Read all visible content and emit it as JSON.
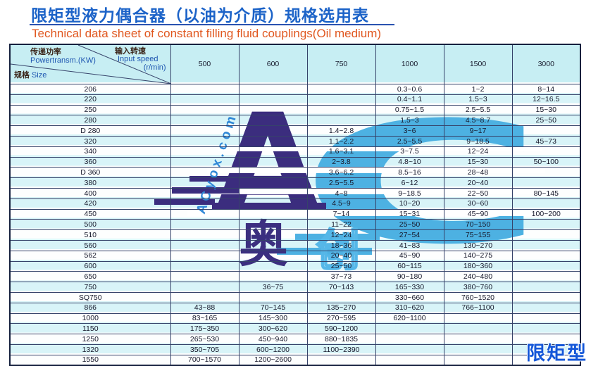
{
  "page": {
    "title_cn": "限矩型液力偶合器（以油为介质）规格选用表",
    "title_en": "Technical data sheet of constant filling fluid couplings(Oil medium)",
    "corner_label": "限矩型"
  },
  "watermark": {
    "logo_letters": "AC",
    "site_text": "ACyox.com",
    "char_left": "奥",
    "char_right": "创",
    "color_dark": "#3b2d7e",
    "color_light": "#4db1e2"
  },
  "table": {
    "header": {
      "power_cn": "传递功率",
      "power_en": "Powertransm.(KW)",
      "speed_cn": "输入转速",
      "speed_en": "Input speed",
      "speed_unit": "(r/min)",
      "size_cn": "规格",
      "size_en": "Size",
      "speed_columns": [
        "500",
        "600",
        "750",
        "1000",
        "1500",
        "3000"
      ]
    },
    "rows": [
      {
        "size": "206",
        "v": [
          "",
          "",
          "",
          "0.3~0.6",
          "1~2",
          "8~14"
        ]
      },
      {
        "size": "220",
        "v": [
          "",
          "",
          "",
          "0.4~1.1",
          "1.5~3",
          "12~16.5"
        ]
      },
      {
        "size": "250",
        "v": [
          "",
          "",
          "",
          "0.75~1.5",
          "2.5~5.5",
          "15~30"
        ]
      },
      {
        "size": "280",
        "v": [
          "",
          "",
          "",
          "1.5~3",
          "4.5~8.7",
          "25~50"
        ]
      },
      {
        "size": "D 280",
        "v": [
          "",
          "",
          "1.4~2.8",
          "3~6",
          "9~17",
          ""
        ]
      },
      {
        "size": "320",
        "v": [
          "",
          "",
          "1.1~2.2",
          "2.5~5.5",
          "9~18.5",
          "45~73"
        ]
      },
      {
        "size": "340",
        "v": [
          "",
          "",
          "1.6~3.1",
          "3~7.5",
          "12~24",
          ""
        ]
      },
      {
        "size": "360",
        "v": [
          "",
          "",
          "2~3.8",
          "4.8~10",
          "15~30",
          "50~100"
        ]
      },
      {
        "size": "D 360",
        "v": [
          "",
          "",
          "3.6~6.2",
          "8.5~16",
          "28~48",
          ""
        ]
      },
      {
        "size": "380",
        "v": [
          "",
          "",
          "2.5~5.5",
          "6~12",
          "20~40",
          ""
        ]
      },
      {
        "size": "400",
        "v": [
          "",
          "",
          "4~8",
          "9~18.5",
          "22~50",
          "80~145"
        ]
      },
      {
        "size": "420",
        "v": [
          "",
          "",
          "4.5~9",
          "10~20",
          "30~60",
          ""
        ]
      },
      {
        "size": "450",
        "v": [
          "",
          "",
          "7~14",
          "15~31",
          "45~90",
          "100~200"
        ]
      },
      {
        "size": "500",
        "v": [
          "",
          "",
          "11~22",
          "25~50",
          "70~150",
          ""
        ]
      },
      {
        "size": "510",
        "v": [
          "",
          "",
          "12~24",
          "27~54",
          "75~155",
          ""
        ]
      },
      {
        "size": "560",
        "v": [
          "",
          "",
          "18~36",
          "41~83",
          "130~270",
          ""
        ]
      },
      {
        "size": "562",
        "v": [
          "",
          "",
          "20~40",
          "45~90",
          "140~275",
          ""
        ]
      },
      {
        "size": "600",
        "v": [
          "",
          "",
          "25~50",
          "60~115",
          "180~360",
          ""
        ]
      },
      {
        "size": "650",
        "v": [
          "",
          "",
          "37~73",
          "90~180",
          "240~480",
          ""
        ]
      },
      {
        "size": "750",
        "v": [
          "",
          "36~75",
          "70~143",
          "165~330",
          "380~760",
          ""
        ]
      },
      {
        "size": "SQ750",
        "v": [
          "",
          "",
          "",
          "330~660",
          "760~1520",
          ""
        ]
      },
      {
        "size": "866",
        "v": [
          "43~88",
          "70~145",
          "135~270",
          "310~620",
          "766~1100",
          ""
        ]
      },
      {
        "size": "1000",
        "v": [
          "83~165",
          "145~300",
          "270~595",
          "620~1100",
          "",
          ""
        ]
      },
      {
        "size": "1150",
        "v": [
          "175~350",
          "300~620",
          "590~1200",
          "",
          "",
          ""
        ]
      },
      {
        "size": "1250",
        "v": [
          "265~530",
          "450~940",
          "880~1835",
          "",
          "",
          ""
        ]
      },
      {
        "size": "1320",
        "v": [
          "350~705",
          "600~1200",
          "1100~2390",
          "",
          "",
          ""
        ]
      },
      {
        "size": "1550",
        "v": [
          "700~1570",
          "1200~2600",
          "",
          "",
          "",
          ""
        ]
      }
    ]
  }
}
